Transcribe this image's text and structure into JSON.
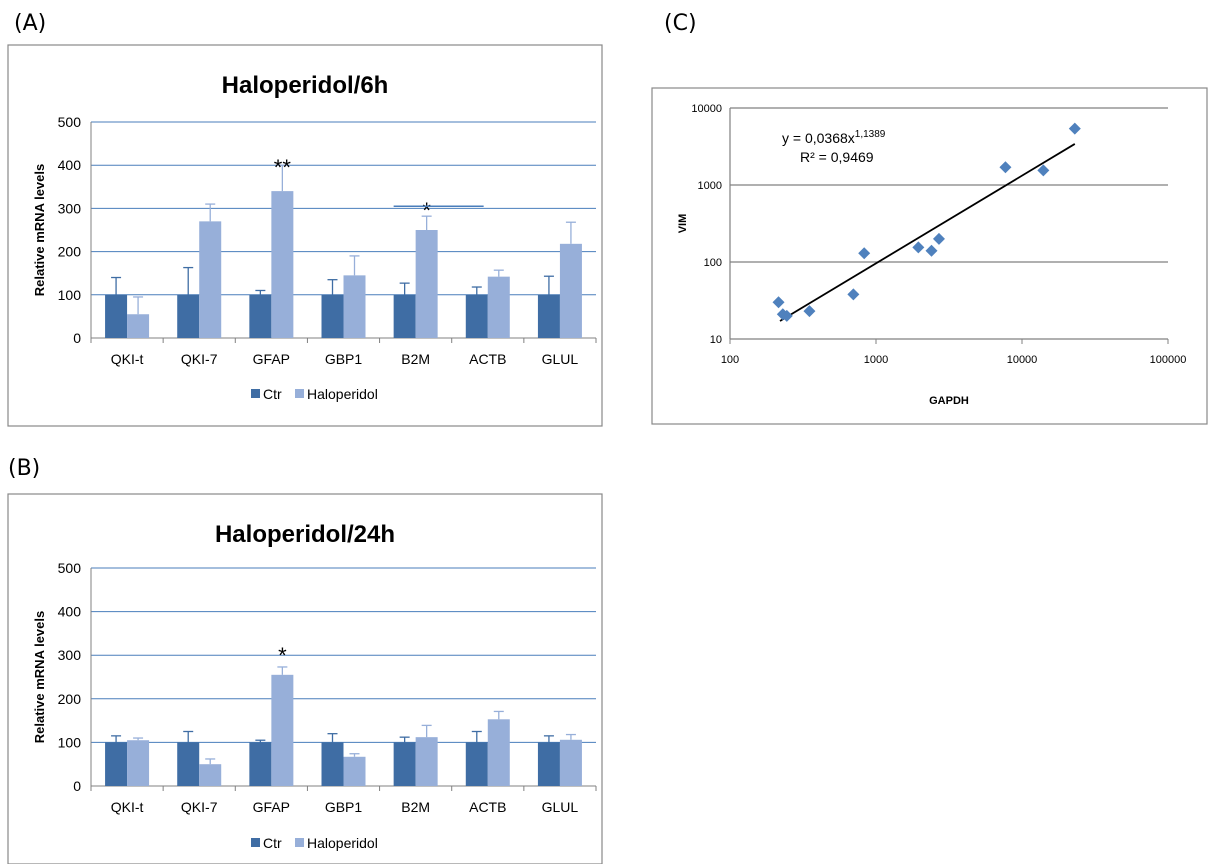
{
  "panels": {
    "a_label": "(A)",
    "b_label": "(B)",
    "c_label": "(C)"
  },
  "colors": {
    "ctr": "#3F6DA4",
    "haloperidol": "#97AFD9",
    "gridline": "#4A7EBB",
    "scatter_point": "#4F81BD",
    "frame": "#888888"
  },
  "chart_data": [
    {
      "type": "bar",
      "title": "Haloperidol/6h",
      "ylabel": "Relative mRNA levels",
      "xlabel": "",
      "ylim": [
        0,
        500
      ],
      "yticks": [
        0,
        100,
        200,
        300,
        400,
        500
      ],
      "categories": [
        "QKI-t",
        "QKI-7",
        "GFAP",
        "GBP1",
        "B2M",
        "ACTB",
        "GLUL"
      ],
      "series": [
        {
          "name": "Ctr",
          "values": [
            100,
            100,
            100,
            100,
            100,
            100,
            100
          ],
          "errors": [
            40,
            63,
            10,
            35,
            27,
            18,
            43
          ]
        },
        {
          "name": "Haloperidol",
          "values": [
            55,
            270,
            340,
            145,
            250,
            142,
            218
          ],
          "errors": [
            40,
            40,
            60,
            45,
            32,
            15,
            50
          ]
        }
      ],
      "annotations": [
        {
          "text": "**",
          "category": "GFAP",
          "y": 405
        },
        {
          "text": "*",
          "category": "B2M",
          "y": 305
        }
      ],
      "grid": true,
      "legend": "bottom"
    },
    {
      "type": "bar",
      "title": "Haloperidol/24h",
      "ylabel": "Relative mRNA levels",
      "xlabel": "",
      "ylim": [
        0,
        500
      ],
      "yticks": [
        0,
        100,
        200,
        300,
        400,
        500
      ],
      "categories": [
        "QKI-t",
        "QKI-7",
        "GFAP",
        "GBP1",
        "B2M",
        "ACTB",
        "GLUL"
      ],
      "series": [
        {
          "name": "Ctr",
          "values": [
            100,
            100,
            100,
            100,
            100,
            100,
            100
          ],
          "errors": [
            15,
            25,
            5,
            20,
            12,
            25,
            15
          ]
        },
        {
          "name": "Haloperidol",
          "values": [
            105,
            50,
            255,
            67,
            112,
            153,
            106
          ],
          "errors": [
            5,
            12,
            18,
            7,
            27,
            18,
            12
          ]
        }
      ],
      "annotations": [
        {
          "text": "*",
          "category": "GFAP",
          "y": 310
        }
      ],
      "grid": true,
      "legend": "bottom"
    },
    {
      "type": "scatter",
      "title": "",
      "xlabel": "GAPDH",
      "ylabel": "VIM",
      "xscale": "log",
      "yscale": "log",
      "xlim": [
        100,
        100000
      ],
      "ylim": [
        10,
        10000
      ],
      "xticks": [
        100,
        1000,
        10000,
        100000
      ],
      "yticks": [
        10,
        100,
        1000,
        10000
      ],
      "xtick_labels": [
        "100",
        "1000",
        "10000",
        "100000"
      ],
      "ytick_labels": [
        "10",
        "100",
        "1000",
        "10000"
      ],
      "points": [
        {
          "x": 215,
          "y": 30
        },
        {
          "x": 230,
          "y": 21
        },
        {
          "x": 245,
          "y": 20
        },
        {
          "x": 350,
          "y": 23
        },
        {
          "x": 700,
          "y": 38
        },
        {
          "x": 830,
          "y": 130
        },
        {
          "x": 1950,
          "y": 155
        },
        {
          "x": 2400,
          "y": 140
        },
        {
          "x": 2700,
          "y": 200
        },
        {
          "x": 7700,
          "y": 1700
        },
        {
          "x": 14000,
          "y": 1550
        },
        {
          "x": 23000,
          "y": 5400
        }
      ],
      "trendline": {
        "a": 0.0368,
        "b": 1.1389,
        "x_range": [
          220,
          23000
        ]
      },
      "equation_text": "y = 0,0368x",
      "equation_exponent": "1,1389",
      "r2_text": "R² = 0,9469",
      "grid": true
    }
  ]
}
